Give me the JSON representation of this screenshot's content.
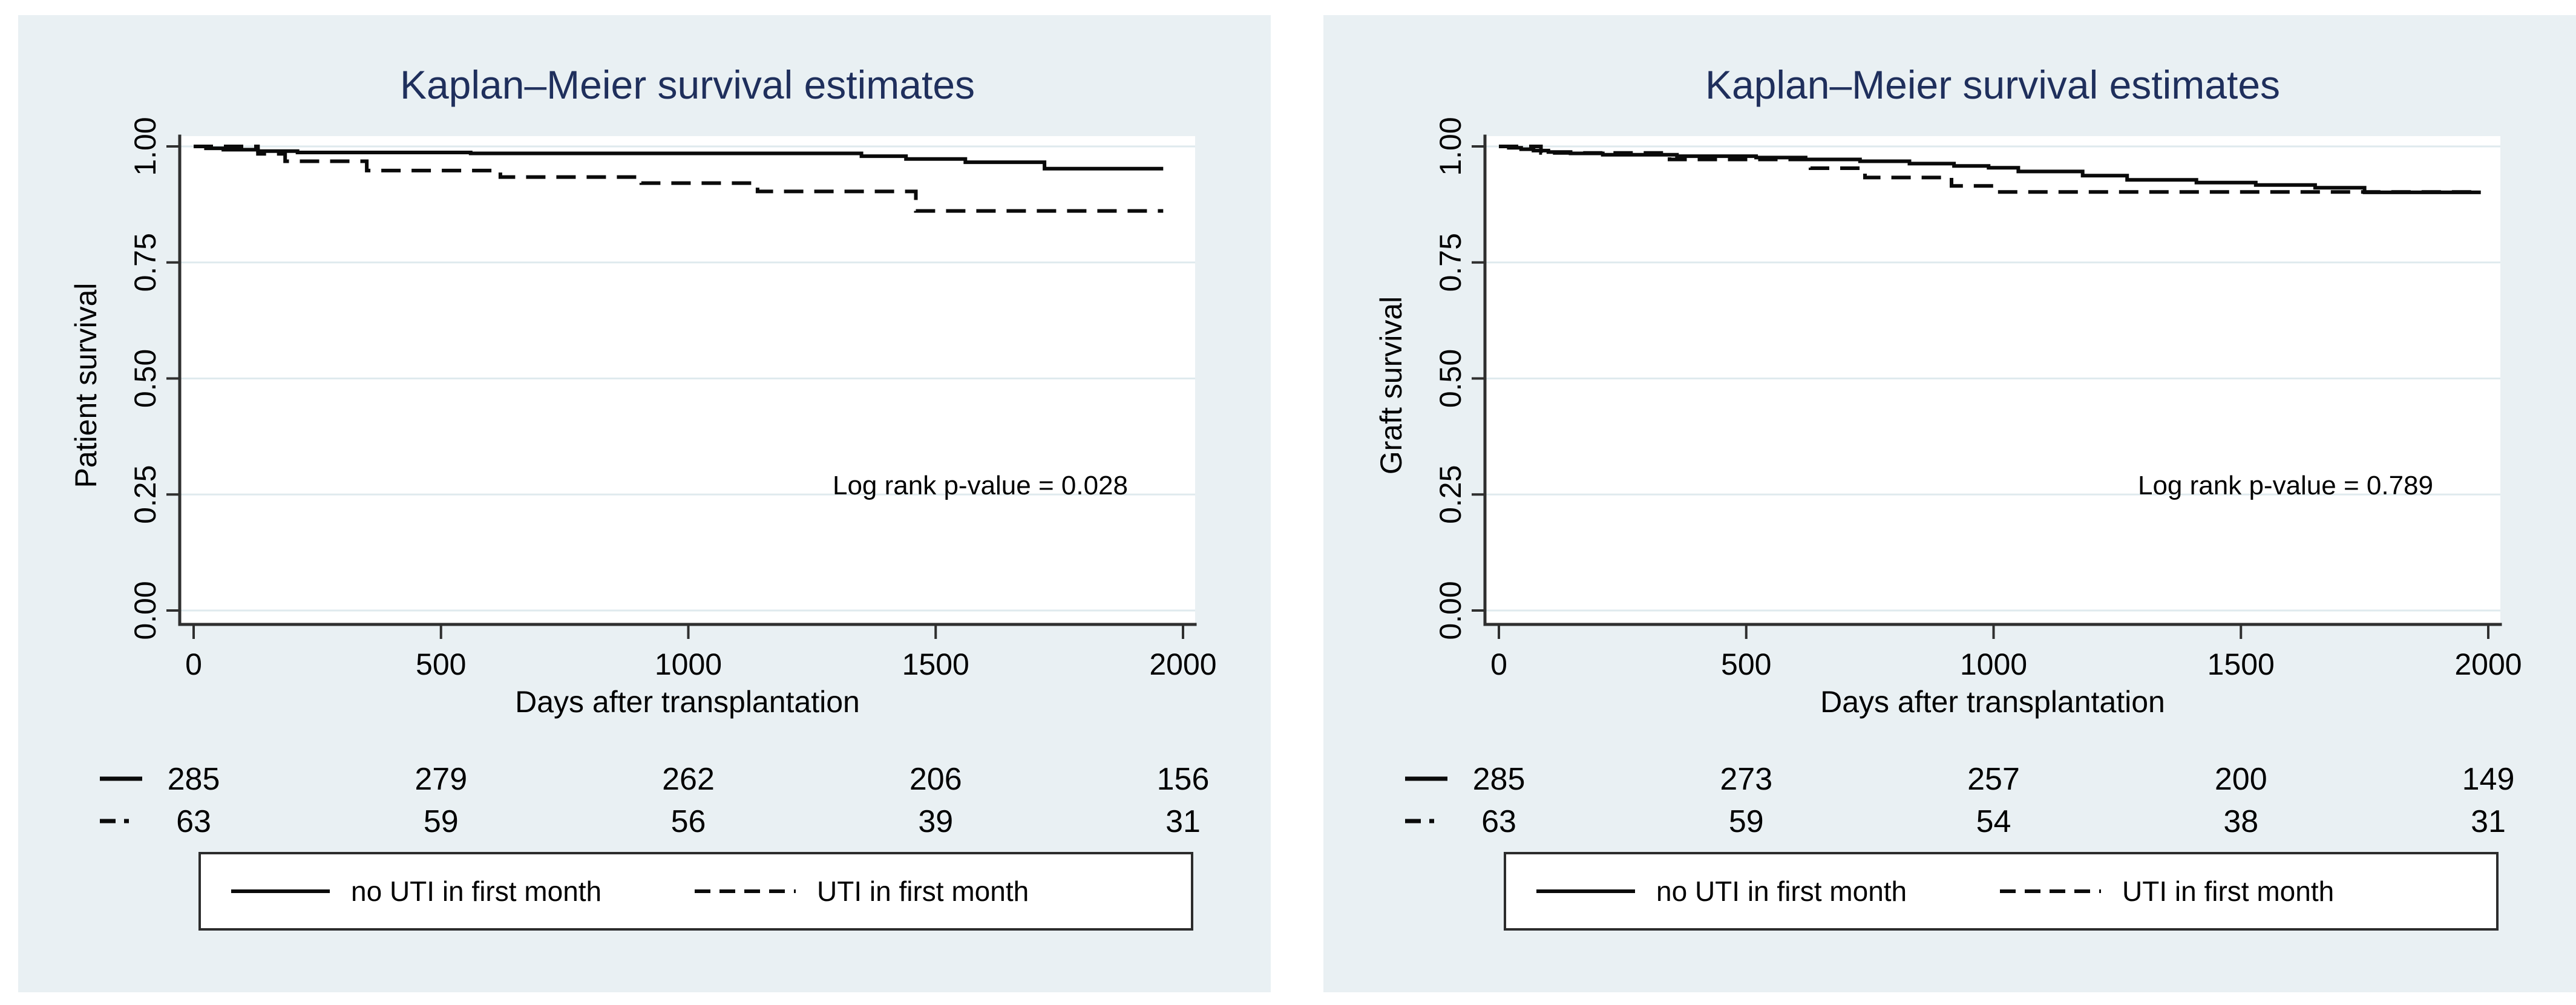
{
  "colors": {
    "page_background": "#ffffff",
    "panel_background": "#e9f0f3",
    "plot_background": "#ffffff",
    "gridline": "#dfeaee",
    "axis": "#2f2f2f",
    "title_text": "#1f2f5c",
    "curve": "#0a0a0a"
  },
  "chart_data": [
    {
      "type": "line",
      "subtype": "kaplan-meier-step",
      "title": "Kaplan–Meier survival estimates",
      "xlabel": "Days after transplantation",
      "ylabel": "Patient survival",
      "xlim": [
        0,
        2000
      ],
      "ylim": [
        0,
        1
      ],
      "grid": "horizontal",
      "xticks": [
        0,
        500,
        1000,
        1500,
        2000
      ],
      "yticks": [
        "1.00",
        "0.75",
        "0.50",
        "0.25",
        "0.00"
      ],
      "annotation": "Log rank p-value = 0.028",
      "legend_position": "bottom-box",
      "legend": [
        {
          "label": "no UTI in first month",
          "line_style": "solid"
        },
        {
          "label": "UTI in first month",
          "line_style": "dashed"
        }
      ],
      "series": [
        {
          "name": "no UTI in first month",
          "line_style": "solid",
          "steps": [
            [
              0,
              1.0
            ],
            [
              25,
              0.996
            ],
            [
              60,
              0.993
            ],
            [
              130,
              0.99
            ],
            [
              210,
              0.987
            ],
            [
              560,
              0.985
            ],
            [
              1350,
              0.979
            ],
            [
              1440,
              0.973
            ],
            [
              1560,
              0.966
            ],
            [
              1720,
              0.952
            ],
            [
              1960,
              0.952
            ]
          ]
        },
        {
          "name": "UTI in first month",
          "line_style": "dashed",
          "steps": [
            [
              0,
              1.0
            ],
            [
              130,
              0.984
            ],
            [
              185,
              0.968
            ],
            [
              350,
              0.948
            ],
            [
              620,
              0.934
            ],
            [
              905,
              0.921
            ],
            [
              1140,
              0.903
            ],
            [
              1460,
              0.861
            ],
            [
              1960,
              0.861
            ]
          ]
        }
      ],
      "at_risk": {
        "x": [
          0,
          500,
          1000,
          1500,
          2000
        ],
        "rows": [
          {
            "line_style": "solid",
            "counts": [
              285,
              279,
              262,
              206,
              156
            ]
          },
          {
            "line_style": "dashed",
            "counts": [
              63,
              59,
              56,
              39,
              31
            ]
          }
        ]
      }
    },
    {
      "type": "line",
      "subtype": "kaplan-meier-step",
      "title": "Kaplan–Meier survival estimates",
      "xlabel": "Days after transplantation",
      "ylabel": "Graft survival",
      "xlim": [
        0,
        2000
      ],
      "ylim": [
        0,
        1
      ],
      "grid": "horizontal",
      "xticks": [
        0,
        500,
        1000,
        1500,
        2000
      ],
      "yticks": [
        "1.00",
        "0.75",
        "0.50",
        "0.25",
        "0.00"
      ],
      "annotation": "Log rank p-value = 0.789",
      "legend_position": "bottom-box",
      "legend": [
        {
          "label": "no UTI in first month",
          "line_style": "solid"
        },
        {
          "label": "UTI in first month",
          "line_style": "dashed"
        }
      ],
      "series": [
        {
          "name": "no UTI in first month",
          "line_style": "solid",
          "steps": [
            [
              0,
              1.0
            ],
            [
              20,
              0.997
            ],
            [
              45,
              0.994
            ],
            [
              70,
              0.991
            ],
            [
              100,
              0.988
            ],
            [
              145,
              0.985
            ],
            [
              210,
              0.982
            ],
            [
              360,
              0.979
            ],
            [
              520,
              0.976
            ],
            [
              620,
              0.972
            ],
            [
              730,
              0.968
            ],
            [
              830,
              0.963
            ],
            [
              920,
              0.958
            ],
            [
              990,
              0.954
            ],
            [
              1050,
              0.946
            ],
            [
              1180,
              0.937
            ],
            [
              1270,
              0.928
            ],
            [
              1410,
              0.922
            ],
            [
              1530,
              0.917
            ],
            [
              1650,
              0.911
            ],
            [
              1750,
              0.901
            ],
            [
              1985,
              0.901
            ]
          ]
        },
        {
          "name": "UTI in first month",
          "line_style": "dashed",
          "steps": [
            [
              0,
              1.0
            ],
            [
              85,
              0.986
            ],
            [
              345,
              0.972
            ],
            [
              630,
              0.953
            ],
            [
              740,
              0.933
            ],
            [
              915,
              0.915
            ],
            [
              1005,
              0.902
            ],
            [
              1985,
              0.902
            ]
          ]
        }
      ],
      "at_risk": {
        "x": [
          0,
          500,
          1000,
          1500,
          2000
        ],
        "rows": [
          {
            "line_style": "solid",
            "counts": [
              285,
              273,
              257,
              200,
              149
            ]
          },
          {
            "line_style": "dashed",
            "counts": [
              63,
              59,
              54,
              38,
              31
            ]
          }
        ]
      }
    }
  ]
}
